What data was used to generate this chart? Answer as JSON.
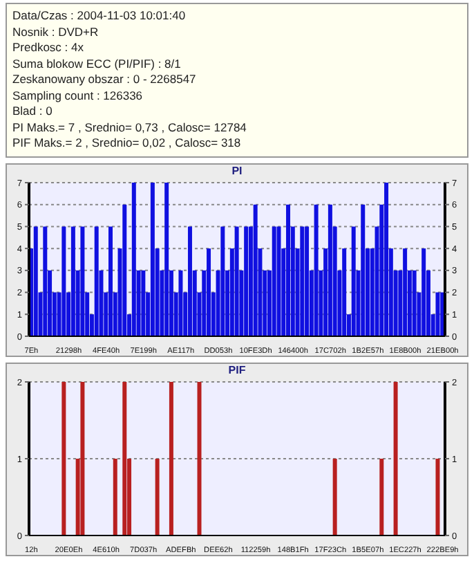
{
  "chart_data": [
    {
      "type": "other",
      "annotations": [
        "Data/Czas : 2004-11-03 10:01:40",
        "Nosnik : DVD+R",
        "Predkosc : 4x",
        "Suma blokow ECC (PI/PIF) : 8/1",
        "Zeskanowany obszar : 0 - 2268547",
        "Sampling count : 126336",
        "Blad : 0",
        "PI Maks.= 7 , Srednio= 0,73 , Calosc= 12784",
        "PIF Maks.= 2 , Srednio= 0,02 , Calosc= 318"
      ]
    },
    {
      "type": "bar",
      "title": "PI",
      "categories": [
        "7Eh",
        null,
        null,
        null,
        null,
        null,
        null,
        null,
        "21298h",
        null,
        null,
        null,
        null,
        null,
        null,
        null,
        "4FE40h",
        null,
        null,
        null,
        null,
        null,
        null,
        null,
        "7E199h",
        null,
        null,
        null,
        null,
        null,
        null,
        null,
        "AE117h",
        null,
        null,
        null,
        null,
        null,
        null,
        null,
        "DD053h",
        null,
        null,
        null,
        null,
        null,
        null,
        null,
        "10FE3Dh",
        null,
        null,
        null,
        null,
        null,
        null,
        null,
        "146400h",
        null,
        null,
        null,
        null,
        null,
        null,
        null,
        "17C702h",
        null,
        null,
        null,
        null,
        null,
        null,
        null,
        "1B2E57h",
        null,
        null,
        null,
        null,
        null,
        null,
        null,
        "1E8B00h",
        null,
        null,
        null,
        null,
        null,
        null,
        null,
        "21EB00h"
      ],
      "values": [
        4,
        5,
        2,
        5,
        3,
        2,
        2,
        5,
        2,
        5,
        3,
        5,
        2,
        1,
        5,
        3,
        2,
        5,
        2,
        4,
        6,
        1,
        7,
        3,
        3,
        2,
        7,
        4,
        3,
        7,
        3,
        2,
        3,
        2,
        5,
        3,
        2,
        3,
        4,
        2,
        3,
        5,
        3,
        4,
        5,
        3,
        5,
        5,
        6,
        4,
        3,
        3,
        5,
        5,
        4,
        6,
        5,
        4,
        5,
        5,
        3,
        6,
        3,
        4,
        6,
        5,
        3,
        4,
        1,
        5,
        3,
        6,
        4,
        4,
        5,
        6,
        7,
        4,
        3,
        3,
        4,
        3,
        3,
        2,
        4,
        3,
        1,
        2,
        2
      ],
      "color": "#1010e0",
      "ylim": [
        0,
        7
      ],
      "yticks": [
        0,
        1,
        2,
        3,
        4,
        5,
        6,
        7
      ],
      "y2lim": [
        0,
        7
      ],
      "y2ticks": [
        0,
        1,
        2,
        3,
        4,
        5,
        6,
        7
      ],
      "grid": "y"
    },
    {
      "type": "bar",
      "title": "PIF",
      "categories": [
        "12h",
        null,
        null,
        null,
        null,
        null,
        null,
        null,
        "20E0Eh",
        null,
        null,
        null,
        null,
        null,
        null,
        null,
        "4E610h",
        null,
        null,
        null,
        null,
        null,
        null,
        null,
        "7D037h",
        null,
        null,
        null,
        null,
        null,
        null,
        null,
        "ADEFBh",
        null,
        null,
        null,
        null,
        null,
        null,
        null,
        "DEE62h",
        null,
        null,
        null,
        null,
        null,
        null,
        null,
        "112259h",
        null,
        null,
        null,
        null,
        null,
        null,
        null,
        "148B1Fh",
        null,
        null,
        null,
        null,
        null,
        null,
        null,
        "17F23Ch",
        null,
        null,
        null,
        null,
        null,
        null,
        null,
        "1B5E07h",
        null,
        null,
        null,
        null,
        null,
        null,
        null,
        "1EC227h",
        null,
        null,
        null,
        null,
        null,
        null,
        null,
        "222BE9h"
      ],
      "values": [
        0,
        0,
        0,
        0,
        0,
        0,
        0,
        2,
        0,
        0,
        1,
        2,
        0,
        0,
        0,
        0,
        0,
        0,
        1,
        0,
        2,
        1,
        0,
        0,
        0,
        0,
        0,
        1,
        0,
        0,
        2,
        0,
        0,
        0,
        0,
        0,
        2,
        0,
        0,
        0,
        0,
        0,
        0,
        0,
        0,
        0,
        0,
        0,
        0,
        0,
        0,
        0,
        0,
        0,
        0,
        0,
        0,
        0,
        0,
        0,
        0,
        0,
        0,
        0,
        0,
        1,
        0,
        0,
        0,
        0,
        0,
        0,
        0,
        0,
        0,
        1,
        0,
        0,
        2,
        0,
        0,
        0,
        0,
        0,
        0,
        0,
        0,
        1,
        0
      ],
      "color": "#b82020",
      "ylim": [
        0,
        2
      ],
      "yticks": [
        0,
        1,
        2
      ],
      "y2lim": [
        0,
        2
      ],
      "y2ticks": [
        0,
        1,
        2
      ],
      "grid": "y"
    }
  ]
}
